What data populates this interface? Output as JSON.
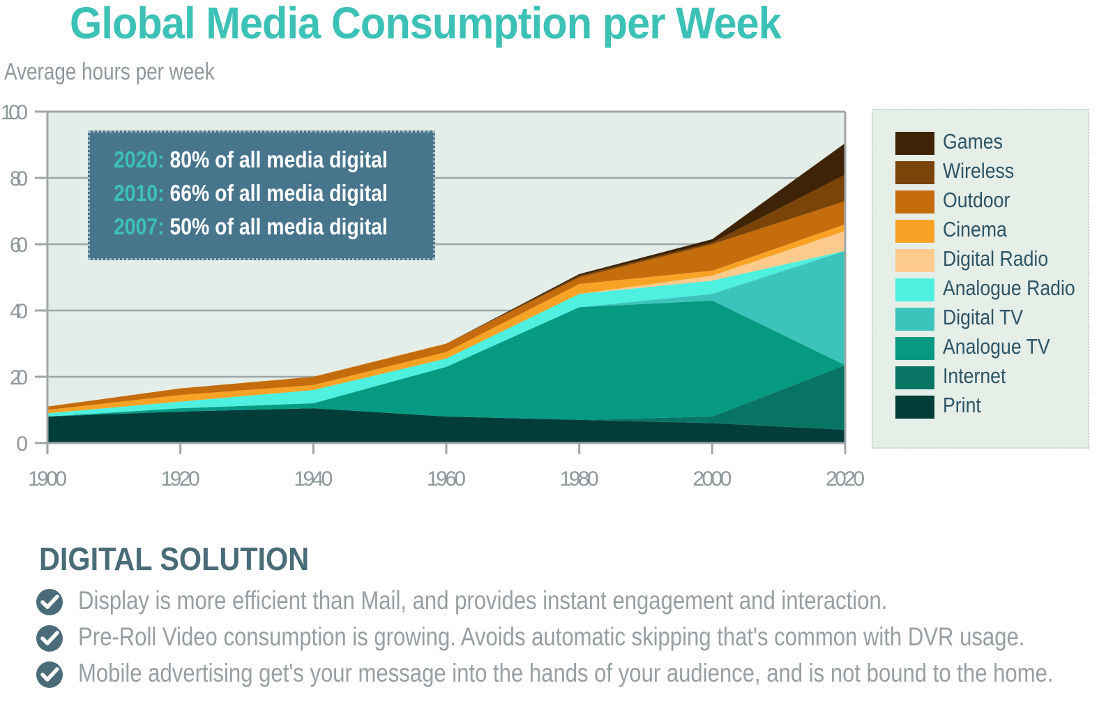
{
  "title": "Global Media Consumption per Week",
  "subtitle": "Average hours per week",
  "callout": {
    "lines": [
      {
        "year": "2020:",
        "text": "80% of all media digital"
      },
      {
        "year": "2010:",
        "text": "66% of all media digital"
      },
      {
        "year": "2007:",
        "text": "50% of all media digital"
      }
    ]
  },
  "legend": [
    {
      "label": "Games",
      "color": "#3e2306"
    },
    {
      "label": "Wireless",
      "color": "#7a4308"
    },
    {
      "label": "Outdoor",
      "color": "#c56c0c"
    },
    {
      "label": "Cinema",
      "color": "#f8a326"
    },
    {
      "label": "Digital Radio",
      "color": "#fcca8c"
    },
    {
      "label": "Analogue Radio",
      "color": "#4ef0e0"
    },
    {
      "label": "Digital TV",
      "color": "#3cc4bc"
    },
    {
      "label": "Analogue TV",
      "color": "#069a82"
    },
    {
      "label": "Internet",
      "color": "#087564"
    },
    {
      "label": "Print",
      "color": "#033d3a"
    }
  ],
  "chart_data": {
    "type": "area",
    "stacked": true,
    "title": "Global Media Consumption per Week",
    "ylabel": "Average hours per week",
    "xlabel": "",
    "x": [
      1900,
      1920,
      1940,
      1960,
      1980,
      2000,
      2020
    ],
    "xlim": [
      1900,
      2020
    ],
    "ylim": [
      0,
      100
    ],
    "x_ticks": [
      "1900",
      "1920",
      "1940",
      "1960",
      "1980",
      "2000",
      "2020"
    ],
    "y_ticks": [
      "0",
      "20",
      "40",
      "60",
      "80",
      "100"
    ],
    "grid": true,
    "legend_position": "right",
    "series": [
      {
        "name": "Print",
        "values": [
          8,
          9.5,
          10.5,
          8,
          7,
          6,
          4
        ]
      },
      {
        "name": "Internet",
        "values": [
          0,
          0,
          0,
          0,
          0,
          2,
          19.5
        ]
      },
      {
        "name": "Analogue TV",
        "values": [
          0,
          1,
          1.5,
          15,
          34,
          35,
          0
        ]
      },
      {
        "name": "Digital TV",
        "values": [
          0,
          0,
          0,
          0,
          0,
          2,
          34.5
        ]
      },
      {
        "name": "Analogue Radio",
        "values": [
          1,
          2,
          4,
          2.5,
          4,
          4,
          0
        ]
      },
      {
        "name": "Digital Radio",
        "values": [
          0,
          0,
          0,
          0,
          0,
          1.5,
          6
        ]
      },
      {
        "name": "Cinema",
        "values": [
          1,
          2,
          1.5,
          2,
          3,
          1.5,
          2
        ]
      },
      {
        "name": "Outdoor",
        "values": [
          1,
          2,
          2.5,
          2.5,
          2,
          8,
          7
        ]
      },
      {
        "name": "Wireless",
        "values": [
          0,
          0,
          0,
          0,
          0.5,
          0.5,
          8
        ]
      },
      {
        "name": "Games",
        "values": [
          0,
          0,
          0,
          0,
          0.5,
          1,
          9.5
        ]
      }
    ]
  },
  "section": {
    "heading": "DIGITAL SOLUTION",
    "bullets": [
      "Display is more efficient than Mail, and provides instant engagement and interaction.",
      "Pre-Roll Video consumption is growing. Avoids automatic skipping that's common with DVR usage.",
      "Mobile advertising get's your message into the hands of your audience, and is not bound to the home."
    ]
  },
  "colors": {
    "title": "#3cc1b6",
    "plot_background": "#e4eee8",
    "axis": "#9ea6a9",
    "callout_background": "#47758c",
    "check_icon": "#4a6c78"
  }
}
